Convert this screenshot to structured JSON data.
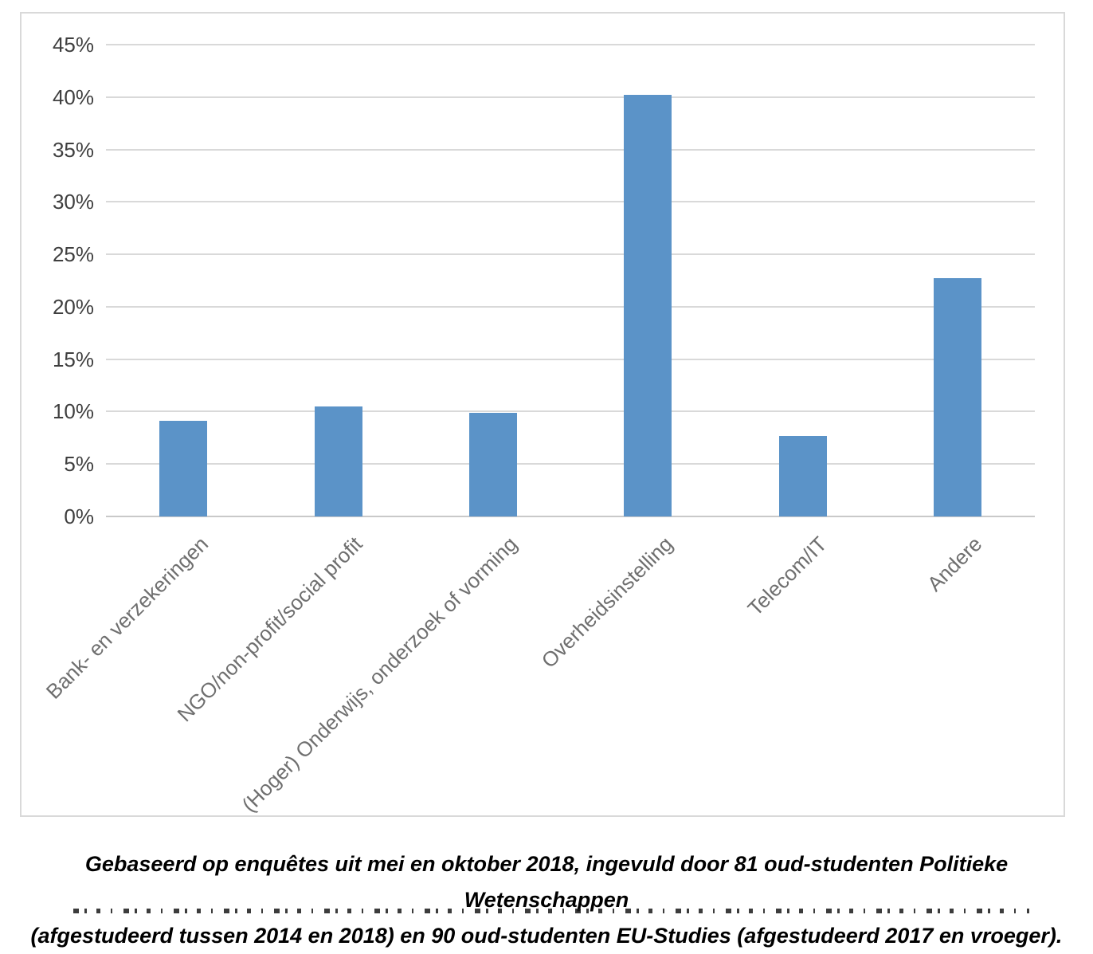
{
  "chart_data": {
    "type": "bar",
    "categories": [
      "Bank- en verzekeringen",
      "NGO/non-profit/social profit",
      "(Hoger) Onderwijs, onderzoek of vorming",
      "Overheidsinstelling",
      "Telecom/IT",
      "Andere"
    ],
    "values": [
      9.1,
      10.5,
      9.9,
      40.2,
      7.7,
      22.7
    ],
    "title": "",
    "xlabel": "",
    "ylabel": "",
    "ylim": [
      0,
      45
    ],
    "ytick_step": 5,
    "ytick_labels": [
      "0%",
      "5%",
      "10%",
      "15%",
      "20%",
      "25%",
      "30%",
      "35%",
      "40%",
      "45%"
    ],
    "grid": true,
    "legend": false,
    "bar_color": "#5B93C8",
    "gridline_color": "#D9D9D9",
    "tick_label_color": "#3F3F3F",
    "category_label_color": "#6F6F6F"
  },
  "caption": {
    "line1": "Gebaseerd op enquêtes uit mei en oktober 2018, ingevuld door 81 oud-studenten Politieke Wetenschappen",
    "line2": "(afgestudeerd tussen 2014 en 2018) en 90 oud-studenten EU-Studies (afgestudeerd 2017 en vroeger)."
  }
}
